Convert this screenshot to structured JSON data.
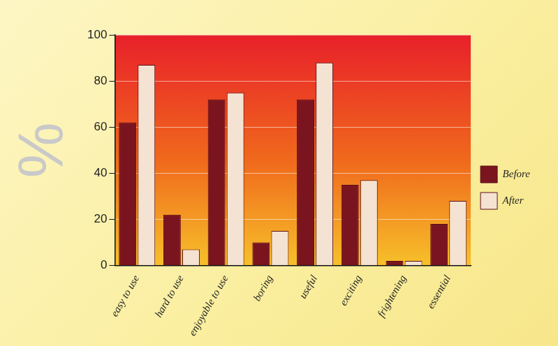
{
  "chart_data": {
    "type": "bar",
    "ylabel": "%",
    "categories": [
      "easy to use",
      "hard to use",
      "enjoyable to use",
      "boring",
      "useful",
      "exciting",
      "frightening",
      "essential"
    ],
    "series": [
      {
        "name": "Before",
        "color": "#7a1520",
        "values": [
          62,
          22,
          72,
          10,
          72,
          35,
          2,
          18
        ]
      },
      {
        "name": "After",
        "color": "#f4e2d2",
        "values": [
          87,
          7,
          75,
          15,
          88,
          37,
          2,
          28
        ]
      }
    ],
    "ylim": [
      0,
      100
    ],
    "yticks": [
      0,
      20,
      40,
      60,
      80,
      100
    ],
    "grid": true,
    "legend": "right"
  }
}
